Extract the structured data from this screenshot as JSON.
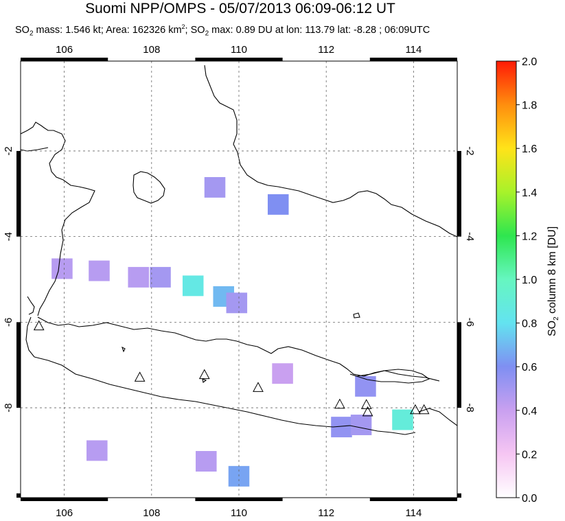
{
  "title": "Suomi NPP/OMPS - 05/07/2013 06:09-06:12 UT",
  "subtitle": {
    "so2_label": "SO",
    "so2_sub": "2",
    "mass_text": " mass: 1.546 kt; Area: 162326 km",
    "area_sup": "2",
    "max_label": "; SO",
    "max_sub": "2",
    "max_text": " max: 0.89 DU at lon: 113.79 lat: -8.28 ; 06:09UTC"
  },
  "map": {
    "lon_range": [
      105,
      115
    ],
    "lat_range": [
      -10.1,
      0.1
    ],
    "lon_ticks": [
      106,
      108,
      110,
      112,
      114
    ],
    "lat_ticks": [
      -2,
      -4,
      -6,
      -8
    ],
    "lon_tick_labels": [
      "106",
      "108",
      "110",
      "112",
      "114"
    ],
    "lat_tick_labels": [
      "-2",
      "-4",
      "-6",
      "-8"
    ],
    "gridlines": true,
    "volcano_icon": "triangle-icon",
    "volcanoes": [
      {
        "lon": 105.42,
        "lat": -6.1
      },
      {
        "lon": 107.73,
        "lat": -7.3
      },
      {
        "lon": 109.21,
        "lat": -7.24
      },
      {
        "lon": 110.44,
        "lat": -7.54
      },
      {
        "lon": 112.31,
        "lat": -7.93
      },
      {
        "lon": 112.92,
        "lat": -7.94
      },
      {
        "lon": 112.95,
        "lat": -8.11
      },
      {
        "lon": 114.04,
        "lat": -8.06
      },
      {
        "lon": 114.24,
        "lat": -8.06
      }
    ],
    "so2_cells": [
      {
        "lon": 110.9,
        "lat": -3.25,
        "du": 0.6
      },
      {
        "lon": 109.45,
        "lat": -2.85,
        "du": 0.5
      },
      {
        "lon": 108.95,
        "lat": -5.15,
        "du": 0.85
      },
      {
        "lon": 109.65,
        "lat": -5.4,
        "du": 0.7
      },
      {
        "lon": 109.95,
        "lat": -5.55,
        "du": 0.5
      },
      {
        "lon": 108.2,
        "lat": -4.95,
        "du": 0.5
      },
      {
        "lon": 107.7,
        "lat": -4.95,
        "du": 0.45
      },
      {
        "lon": 106.8,
        "lat": -4.8,
        "du": 0.45
      },
      {
        "lon": 105.95,
        "lat": -4.75,
        "du": 0.45
      },
      {
        "lon": 112.9,
        "lat": -7.5,
        "du": 0.55
      },
      {
        "lon": 113.75,
        "lat": -8.28,
        "du": 0.89
      },
      {
        "lon": 112.35,
        "lat": -8.45,
        "du": 0.55
      },
      {
        "lon": 112.8,
        "lat": -8.4,
        "du": 0.5
      },
      {
        "lon": 110.0,
        "lat": -9.6,
        "du": 0.65
      },
      {
        "lon": 109.25,
        "lat": -9.25,
        "du": 0.45
      },
      {
        "lon": 106.75,
        "lat": -9.0,
        "du": 0.45
      },
      {
        "lon": 111.0,
        "lat": -7.2,
        "du": 0.4
      }
    ]
  },
  "colorbar": {
    "min": 0.0,
    "max": 2.0,
    "ticks": [
      "0.0",
      "0.2",
      "0.4",
      "0.6",
      "0.8",
      "1.0",
      "1.2",
      "1.4",
      "1.6",
      "1.8",
      "2.0"
    ],
    "label_prefix": "SO",
    "label_sub": "2",
    "label_suffix": " column 8 km [DU]",
    "colors": [
      "#ffffff",
      "#f6c6f3",
      "#c9a0f0",
      "#7f8ff2",
      "#63e3f0",
      "#66f6c0",
      "#2ee64f",
      "#a8f22a",
      "#ffe319",
      "#ff8e0e",
      "#ff1a06"
    ]
  }
}
